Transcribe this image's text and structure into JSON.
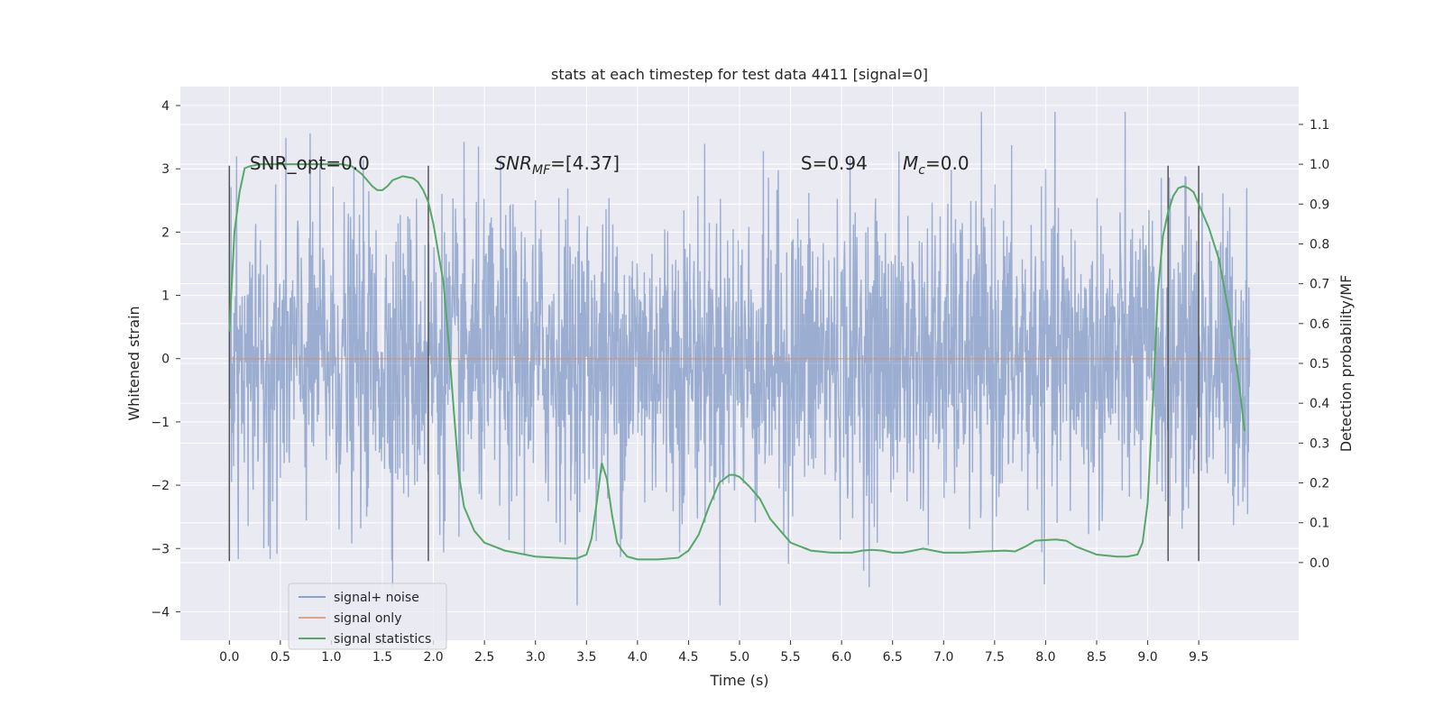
{
  "chart_data": {
    "type": "line",
    "title": "stats at each timestep for test data 4411 [signal=0]",
    "xlabel": "Time (s)",
    "ylabel": "Whitened strain",
    "y2label": "Detection probability/MF",
    "xlim": [
      -0.48,
      10.48
    ],
    "ylim": [
      -4.45,
      4.3
    ],
    "y2lim": [
      -0.195,
      1.195
    ],
    "x_ticks": [
      0.0,
      0.5,
      1.0,
      1.5,
      2.0,
      2.5,
      3.0,
      3.5,
      4.0,
      4.5,
      5.0,
      5.5,
      6.0,
      6.5,
      7.0,
      7.5,
      8.0,
      8.5,
      9.0,
      9.5
    ],
    "x_tick_labels": [
      "0.0",
      "0.5",
      "1.0",
      "1.5",
      "2.0",
      "2.5",
      "3.0",
      "3.5",
      "4.0",
      "4.5",
      "5.0",
      "5.5",
      "6.0",
      "6.5",
      "7.0",
      "7.5",
      "8.0",
      "8.5",
      "9.0",
      "9.5"
    ],
    "y_ticks": [
      4,
      3,
      2,
      1,
      0,
      -1,
      -2,
      -3,
      -4
    ],
    "y_tick_labels": [
      "4",
      "3",
      "2",
      "1",
      "0",
      "−1",
      "−2",
      "−3",
      "−4"
    ],
    "y2_ticks": [
      1.1,
      1.0,
      0.9,
      0.8,
      0.7,
      0.6,
      0.5,
      0.4,
      0.3,
      0.2,
      0.1,
      0.0
    ],
    "y2_tick_labels": [
      "1.1",
      "1.0",
      "0.9",
      "0.8",
      "0.7",
      "0.6",
      "0.5",
      "0.4",
      "0.3",
      "0.2",
      "0.1",
      "0.0"
    ],
    "grid": true,
    "legend_position": "lower-left",
    "series": [
      {
        "name": "signal+ noise",
        "color": "#4c72b0",
        "x_range": [
          0,
          10
        ],
        "typical_amplitude": 1.2,
        "peak_amplitude": 3.9,
        "max_value": 3.92,
        "min_value": -4.05
      },
      {
        "name": "signal only",
        "color": "#dd8452",
        "x_range": [
          0,
          10
        ],
        "values_constant": 0.0
      },
      {
        "name": "signal statistics",
        "color": "#55a868",
        "axis": "right",
        "x": [
          0.0,
          0.05,
          0.1,
          0.15,
          0.2,
          0.3,
          0.4,
          0.6,
          0.8,
          1.0,
          1.1,
          1.2,
          1.3,
          1.4,
          1.45,
          1.5,
          1.55,
          1.6,
          1.7,
          1.8,
          1.85,
          1.9,
          1.95,
          2.0,
          2.1,
          2.15,
          2.2,
          2.25,
          2.3,
          2.4,
          2.5,
          2.7,
          3.0,
          3.2,
          3.4,
          3.5,
          3.55,
          3.6,
          3.65,
          3.7,
          3.75,
          3.8,
          3.85,
          3.9,
          4.0,
          4.2,
          4.4,
          4.5,
          4.6,
          4.7,
          4.8,
          4.9,
          4.95,
          5.0,
          5.1,
          5.2,
          5.3,
          5.5,
          5.7,
          5.9,
          6.1,
          6.2,
          6.3,
          6.4,
          6.5,
          6.6,
          6.7,
          6.8,
          6.9,
          7.0,
          7.2,
          7.4,
          7.6,
          7.7,
          7.8,
          7.9,
          8.1,
          8.2,
          8.3,
          8.5,
          8.7,
          8.8,
          8.9,
          8.95,
          9.0,
          9.05,
          9.1,
          9.15,
          9.2,
          9.25,
          9.3,
          9.35,
          9.4,
          9.45,
          9.5,
          9.6,
          9.7,
          9.8,
          9.9,
          9.95
        ],
        "values": [
          0.58,
          0.83,
          0.93,
          0.99,
          0.995,
          1.0,
          1.0,
          1.0,
          1.0,
          1.0,
          1.0,
          0.995,
          0.975,
          0.945,
          0.935,
          0.935,
          0.945,
          0.96,
          0.97,
          0.965,
          0.955,
          0.935,
          0.905,
          0.85,
          0.7,
          0.55,
          0.38,
          0.22,
          0.14,
          0.08,
          0.05,
          0.03,
          0.015,
          0.012,
          0.01,
          0.02,
          0.06,
          0.15,
          0.25,
          0.21,
          0.12,
          0.05,
          0.03,
          0.015,
          0.008,
          0.008,
          0.012,
          0.03,
          0.07,
          0.14,
          0.2,
          0.22,
          0.22,
          0.215,
          0.19,
          0.16,
          0.11,
          0.05,
          0.03,
          0.025,
          0.025,
          0.03,
          0.032,
          0.03,
          0.025,
          0.025,
          0.03,
          0.035,
          0.03,
          0.025,
          0.025,
          0.028,
          0.03,
          0.028,
          0.04,
          0.055,
          0.058,
          0.055,
          0.04,
          0.02,
          0.015,
          0.015,
          0.02,
          0.05,
          0.15,
          0.4,
          0.68,
          0.82,
          0.88,
          0.92,
          0.94,
          0.945,
          0.94,
          0.93,
          0.9,
          0.84,
          0.76,
          0.62,
          0.44,
          0.33
        ]
      }
    ],
    "vertical_lines": [
      0.0,
      1.95,
      9.2,
      9.5
    ],
    "annotations": [
      {
        "text": "SNR_opt=0.0",
        "x": 0.2,
        "y": 3.0
      },
      {
        "text": "SNR_MF=[4.37]",
        "x": 2.6,
        "y": 3.0
      },
      {
        "text": "S=0.94",
        "x": 5.6,
        "y": 3.0
      },
      {
        "text": "M_c=0.0",
        "x": 6.6,
        "y": 3.0
      }
    ]
  }
}
